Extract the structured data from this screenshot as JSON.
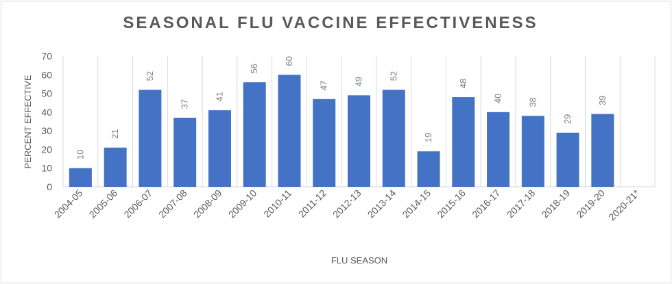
{
  "chart_data": {
    "type": "bar",
    "title": "SEASONAL FLU VACCINE EFFECTIVENESS",
    "xlabel": "FLU SEASON",
    "ylabel": "PERCENT EFFECTIVE",
    "categories": [
      "2004-05",
      "2005-06",
      "2006-07",
      "2007-08",
      "2008-09",
      "2009-10",
      "2010-11",
      "2011-12",
      "2012-13",
      "2013-14",
      "2014-15",
      "2015-16",
      "2016-17",
      "2017-18",
      "2018-19",
      "2019-20",
      "2020-21*"
    ],
    "values": [
      10,
      21,
      52,
      37,
      41,
      56,
      60,
      47,
      49,
      52,
      19,
      48,
      40,
      38,
      29,
      39,
      null
    ],
    "ylim": [
      0,
      70
    ],
    "yticks": [
      0,
      10,
      20,
      30,
      40,
      50,
      60,
      70
    ],
    "grid": "vertical category separators",
    "data_labels": true,
    "colors": {
      "bar": "#4472c4",
      "text": "#595959",
      "grid": "#d9d9d9"
    }
  }
}
